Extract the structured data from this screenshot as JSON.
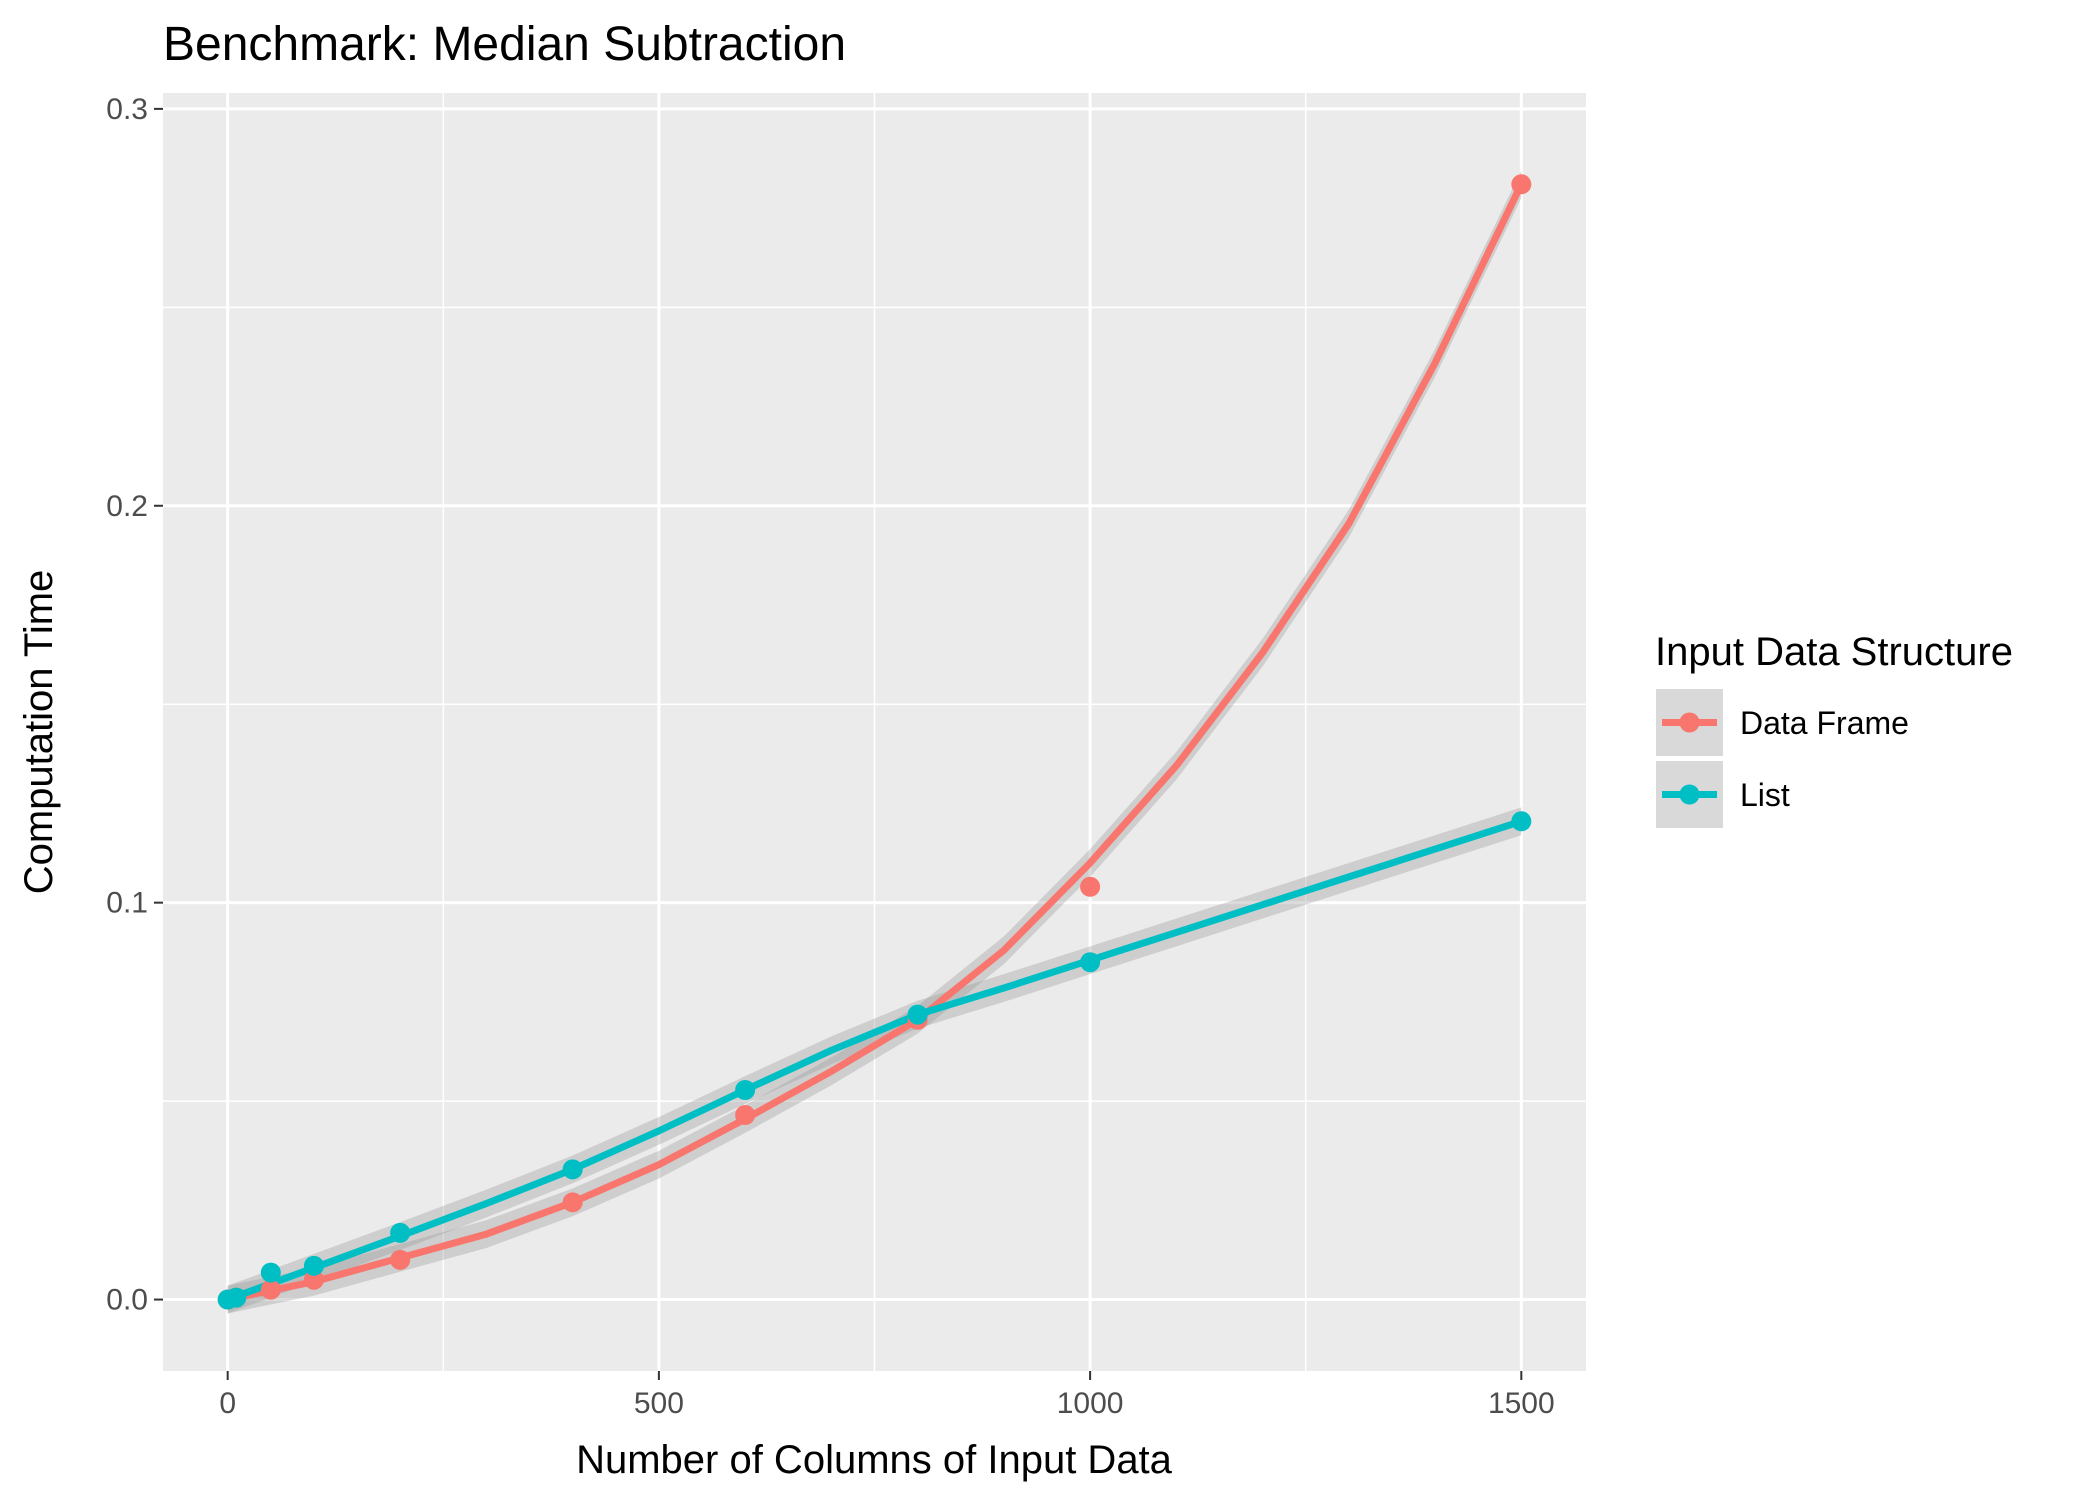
{
  "chart_data": {
    "type": "line",
    "title": "Benchmark: Median Subtraction",
    "xlabel": "Number of Columns of Input Data",
    "ylabel": "Computation Time",
    "xlim": [
      -75,
      1575
    ],
    "ylim": [
      -0.018,
      0.304
    ],
    "x_ticks": [
      0,
      500,
      1000,
      1500
    ],
    "x_tick_labels": [
      "0",
      "500",
      "1000",
      "1500"
    ],
    "y_ticks": [
      0.0,
      0.1,
      0.2,
      0.3
    ],
    "y_tick_labels": [
      "0.0",
      "0.1",
      "0.2",
      "0.3"
    ],
    "grid": true,
    "legend": {
      "title": "Input Data Structure",
      "position": "right"
    },
    "series": [
      {
        "name": "Data Frame",
        "color": "#F8766D",
        "points": [
          [
            0,
            0.0
          ],
          [
            10,
            0.0005
          ],
          [
            50,
            0.0025
          ],
          [
            100,
            0.005
          ],
          [
            200,
            0.01
          ],
          [
            400,
            0.0245
          ],
          [
            600,
            0.0465
          ],
          [
            800,
            0.0705
          ],
          [
            1000,
            0.104
          ],
          [
            1500,
            0.281
          ]
        ],
        "smooth": [
          [
            0,
            0.0
          ],
          [
            100,
            0.0045
          ],
          [
            200,
            0.0105
          ],
          [
            300,
            0.0165
          ],
          [
            400,
            0.0245
          ],
          [
            500,
            0.034
          ],
          [
            600,
            0.0455
          ],
          [
            700,
            0.0575
          ],
          [
            800,
            0.0705
          ],
          [
            900,
            0.088
          ],
          [
            1000,
            0.11
          ],
          [
            1100,
            0.1345
          ],
          [
            1200,
            0.163
          ],
          [
            1300,
            0.1955
          ],
          [
            1400,
            0.236
          ],
          [
            1500,
            0.281
          ]
        ]
      },
      {
        "name": "List",
        "color": "#00BFC4",
        "points": [
          [
            0,
            0.0
          ],
          [
            10,
            0.0005
          ],
          [
            50,
            0.0068
          ],
          [
            100,
            0.0085
          ],
          [
            200,
            0.0168
          ],
          [
            400,
            0.0328
          ],
          [
            600,
            0.0528
          ],
          [
            800,
            0.0718
          ],
          [
            1000,
            0.085
          ],
          [
            1500,
            0.1205
          ]
        ],
        "smooth": [
          [
            0,
            0.0
          ],
          [
            100,
            0.008
          ],
          [
            200,
            0.016
          ],
          [
            300,
            0.0242
          ],
          [
            400,
            0.0328
          ],
          [
            500,
            0.0425
          ],
          [
            600,
            0.0528
          ],
          [
            700,
            0.0628
          ],
          [
            800,
            0.0718
          ],
          [
            900,
            0.0785
          ],
          [
            1000,
            0.0855
          ],
          [
            1100,
            0.0925
          ],
          [
            1200,
            0.0995
          ],
          [
            1300,
            0.1065
          ],
          [
            1400,
            0.1135
          ],
          [
            1500,
            0.1205
          ]
        ]
      }
    ]
  }
}
